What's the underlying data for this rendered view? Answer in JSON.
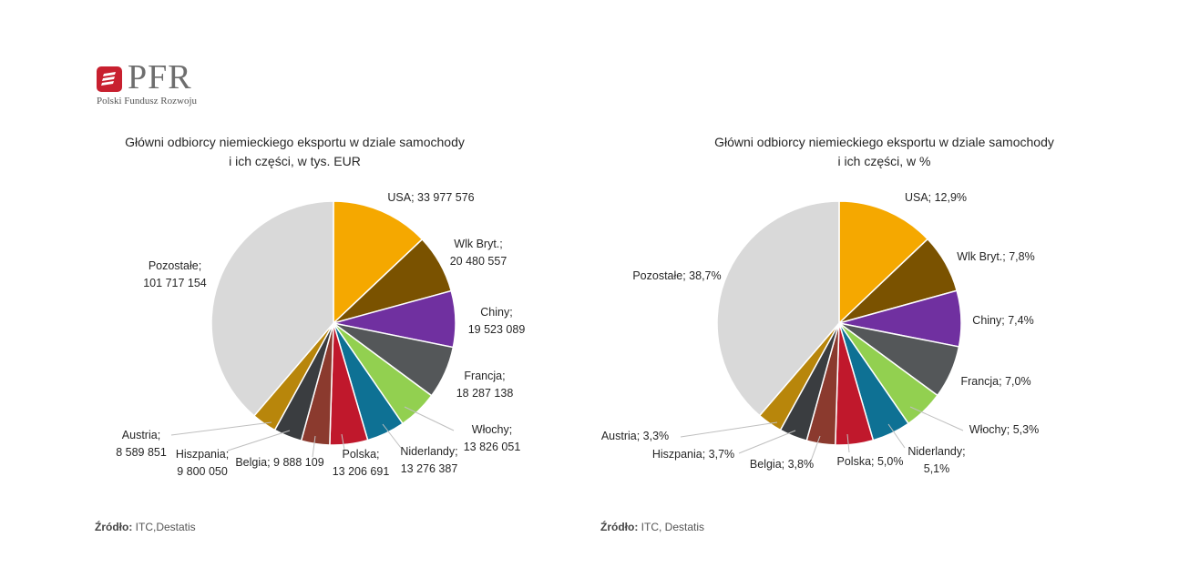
{
  "logo": {
    "brand": "PFR",
    "subtitle": "Polski Fundusz Rozwoju",
    "color": "#c8202f"
  },
  "charts": [
    {
      "title_line1": "Główni odbiorcy niemieckiego eksportu w dziale samochody",
      "title_line2": "i ich części, w tys. EUR",
      "source_label": "Źródło:",
      "source_text": "ITC,Destatis"
    },
    {
      "title_line1": "Główni odbiorcy niemieckiego eksportu w dziale samochody",
      "title_line2": "i ich części, w %",
      "source_label": "Źródło:",
      "source_text": "ITC, Destatis"
    }
  ],
  "chart_data": [
    {
      "type": "pie",
      "title": "Główni odbiorcy niemieckiego eksportu w dziale samochody i ich części, w tys. EUR",
      "categories": [
        "USA",
        "Wlk Bryt.",
        "Chiny",
        "Francja",
        "Włochy",
        "Niderlandy",
        "Polska",
        "Belgia",
        "Hiszpania",
        "Austria",
        "Pozostałe"
      ],
      "values": [
        33977576,
        20480557,
        19523089,
        18287138,
        13826051,
        13276387,
        13206691,
        9888109,
        9800050,
        8589851,
        101717154
      ],
      "labels": [
        [
          "USA; 33 977 576"
        ],
        [
          "Wlk Bryt.;",
          "20 480 557"
        ],
        [
          "Chiny;",
          "19 523 089"
        ],
        [
          "Francja;",
          "18 287 138"
        ],
        [
          "Włochy;",
          "13 826 051"
        ],
        [
          "Niderlandy;",
          "13 276 387"
        ],
        [
          "Polska;",
          "13 206 691"
        ],
        [
          "Belgia; 9 888 109"
        ],
        [
          "Hiszpania;",
          "9 800 050"
        ],
        [
          "Austria;",
          "8 589 851"
        ],
        [
          "Pozostałe;",
          "101 717 154"
        ]
      ],
      "colors": [
        "#f5a800",
        "#7a5200",
        "#7030a0",
        "#545759",
        "#92d050",
        "#0e7194",
        "#c0182c",
        "#8b3a2e",
        "#3a3d40",
        "#b8860b",
        "#d9d9d9"
      ]
    },
    {
      "type": "pie",
      "title": "Główni odbiorcy niemieckiego eksportu w dziale samochody i ich części, w %",
      "categories": [
        "USA",
        "Wlk Bryt.",
        "Chiny",
        "Francja",
        "Włochy",
        "Niderlandy",
        "Polska",
        "Belgia",
        "Hiszpania",
        "Austria",
        "Pozostałe"
      ],
      "values": [
        12.9,
        7.8,
        7.4,
        7.0,
        5.3,
        5.1,
        5.0,
        3.8,
        3.7,
        3.3,
        38.7
      ],
      "labels": [
        [
          "USA; 12,9%"
        ],
        [
          "Wlk Bryt.; 7,8%"
        ],
        [
          "Chiny; 7,4%"
        ],
        [
          "Francja; 7,0%"
        ],
        [
          "Włochy; 5,3%"
        ],
        [
          "Niderlandy;",
          "5,1%"
        ],
        [
          "Polska; 5,0%"
        ],
        [
          "Belgia; 3,8%"
        ],
        [
          "Hiszpania; 3,7%"
        ],
        [
          "Austria; 3,3%"
        ],
        [
          "Pozostałe; 38,7%"
        ]
      ],
      "colors": [
        "#f5a800",
        "#7a5200",
        "#7030a0",
        "#545759",
        "#92d050",
        "#0e7194",
        "#c0182c",
        "#8b3a2e",
        "#3a3d40",
        "#b8860b",
        "#d9d9d9"
      ]
    }
  ]
}
